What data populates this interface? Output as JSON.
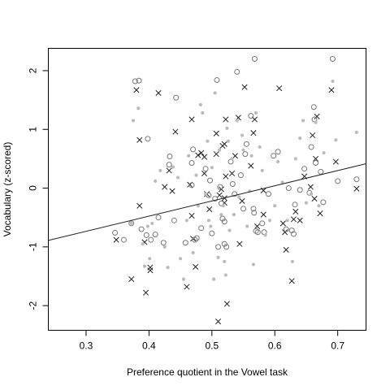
{
  "chart_data": {
    "type": "scatter",
    "xlabel": "Preference quotient in the Vowel task",
    "ylabel": "Vocabulary (z-scored)",
    "xlim": [
      0.24,
      0.745
    ],
    "ylim": [
      -2.42,
      2.38
    ],
    "x_ticks": [
      0.3,
      0.4,
      0.5,
      0.6,
      0.7
    ],
    "x_tick_labels": [
      "0.3",
      "0.4",
      "0.5",
      "0.6",
      "0.7"
    ],
    "y_ticks": [
      -2,
      -1,
      0,
      1,
      2
    ],
    "y_tick_labels": [
      "-2",
      "-1",
      "0",
      "1",
      "2"
    ],
    "grid": false,
    "legend": "none",
    "colors": {
      "cross": "#222222",
      "open_circle": "#777777",
      "filled_dot": "#bbbbbb",
      "line": "#222222"
    },
    "series": [
      {
        "marker": "cross",
        "points": [
          [
            0.38,
            1.67
          ],
          [
            0.385,
            0.82
          ],
          [
            0.385,
            -0.3
          ],
          [
            0.348,
            -0.88
          ],
          [
            0.372,
            -1.55
          ],
          [
            0.393,
            -0.92
          ],
          [
            0.395,
            -1.78
          ],
          [
            0.402,
            -1.35
          ],
          [
            0.402,
            -1.4
          ],
          [
            0.415,
            1.62
          ],
          [
            0.425,
            0.02
          ],
          [
            0.432,
            0.3
          ],
          [
            0.437,
            -0.05
          ],
          [
            0.442,
            0.96
          ],
          [
            0.46,
            -1.68
          ],
          [
            0.465,
            0.06
          ],
          [
            0.468,
            1.17
          ],
          [
            0.468,
            -0.47
          ],
          [
            0.47,
            -0.86
          ],
          [
            0.474,
            -1.34
          ],
          [
            0.478,
            0.56
          ],
          [
            0.483,
            0.6
          ],
          [
            0.488,
            0.53
          ],
          [
            0.488,
            0.25
          ],
          [
            0.492,
            -0.1
          ],
          [
            0.496,
            -0.36
          ],
          [
            0.507,
            0.93
          ],
          [
            0.507,
            0.58
          ],
          [
            0.51,
            -2.27
          ],
          [
            0.512,
            -0.12
          ],
          [
            0.515,
            -0.02
          ],
          [
            0.517,
            0.72
          ],
          [
            0.52,
            0.75
          ],
          [
            0.52,
            -0.25
          ],
          [
            0.52,
            -0.17
          ],
          [
            0.522,
            1.17
          ],
          [
            0.522,
            0.2
          ],
          [
            0.524,
            -1.97
          ],
          [
            0.532,
            0.25
          ],
          [
            0.537,
            0.55
          ],
          [
            0.542,
            1.2
          ],
          [
            0.544,
            -0.95
          ],
          [
            0.548,
            -0.22
          ],
          [
            0.552,
            1.72
          ],
          [
            0.562,
            0.38
          ],
          [
            0.566,
            0.94
          ],
          [
            0.568,
            1.17
          ],
          [
            0.572,
            -0.65
          ],
          [
            0.582,
            -0.04
          ],
          [
            0.582,
            -0.45
          ],
          [
            0.607,
            1.7
          ],
          [
            0.613,
            -0.6
          ],
          [
            0.616,
            -0.75
          ],
          [
            0.618,
            -1.05
          ],
          [
            0.627,
            -1.58
          ],
          [
            0.63,
            -0.53
          ],
          [
            0.633,
            -0.4
          ],
          [
            0.64,
            -0.55
          ],
          [
            0.647,
            0.2
          ],
          [
            0.657,
            0.02
          ],
          [
            0.66,
            0.9
          ],
          [
            0.663,
            -0.18
          ],
          [
            0.665,
            0.5
          ],
          [
            0.667,
            1.22
          ],
          [
            0.672,
            -0.43
          ],
          [
            0.69,
            1.67
          ],
          [
            0.697,
            0.45
          ],
          [
            0.73,
            -0.01
          ]
        ]
      },
      {
        "marker": "open_circle",
        "points": [
          [
            0.378,
            1.82
          ],
          [
            0.384,
            1.83
          ],
          [
            0.398,
            0.84
          ],
          [
            0.346,
            -0.76
          ],
          [
            0.36,
            -0.88
          ],
          [
            0.372,
            -0.6
          ],
          [
            0.388,
            -0.7
          ],
          [
            0.396,
            -0.8
          ],
          [
            0.403,
            -0.88
          ],
          [
            0.41,
            -0.79
          ],
          [
            0.415,
            -0.5
          ],
          [
            0.423,
            -0.93
          ],
          [
            0.432,
            0.4
          ],
          [
            0.433,
            0.54
          ],
          [
            0.44,
            -0.55
          ],
          [
            0.443,
            1.54
          ],
          [
            0.458,
            -0.93
          ],
          [
            0.468,
            0.43
          ],
          [
            0.468,
            0.05
          ],
          [
            0.47,
            0.66
          ],
          [
            0.473,
            -0.88
          ],
          [
            0.476,
            -0.85
          ],
          [
            0.483,
            -0.68
          ],
          [
            0.49,
            0.33
          ],
          [
            0.495,
            -0.12
          ],
          [
            0.497,
            0.13
          ],
          [
            0.5,
            -0.77
          ],
          [
            0.505,
            -0.18
          ],
          [
            0.508,
            1.84
          ],
          [
            0.51,
            -1.0
          ],
          [
            0.513,
            0.02
          ],
          [
            0.515,
            -0.26
          ],
          [
            0.517,
            -0.52
          ],
          [
            0.52,
            -0.57
          ],
          [
            0.52,
            -0.95
          ],
          [
            0.523,
            -1.0
          ],
          [
            0.53,
            0.45
          ],
          [
            0.533,
            0.07
          ],
          [
            0.536,
            -0.1
          ],
          [
            0.54,
            1.98
          ],
          [
            0.546,
            0.22
          ],
          [
            0.55,
            -0.35
          ],
          [
            0.553,
            0.58
          ],
          [
            0.555,
            0.75
          ],
          [
            0.562,
            1.23
          ],
          [
            0.566,
            -0.35
          ],
          [
            0.567,
            -0.42
          ],
          [
            0.568,
            2.2
          ],
          [
            0.57,
            -0.73
          ],
          [
            0.573,
            -0.75
          ],
          [
            0.58,
            -0.6
          ],
          [
            0.583,
            -0.75
          ],
          [
            0.59,
            -0.1
          ],
          [
            0.598,
            0.55
          ],
          [
            0.605,
            0.62
          ],
          [
            0.618,
            -0.7
          ],
          [
            0.622,
            0.0
          ],
          [
            0.627,
            -0.72
          ],
          [
            0.63,
            -0.78
          ],
          [
            0.632,
            -0.28
          ],
          [
            0.64,
            -0.03
          ],
          [
            0.647,
            0.33
          ],
          [
            0.655,
            -0.08
          ],
          [
            0.658,
            0.7
          ],
          [
            0.662,
            1.38
          ],
          [
            0.663,
            1.17
          ],
          [
            0.665,
            0.43
          ],
          [
            0.673,
            0.28
          ],
          [
            0.677,
            -0.24
          ],
          [
            0.692,
            2.2
          ],
          [
            0.7,
            0.12
          ],
          [
            0.73,
            0.15
          ]
        ]
      },
      {
        "marker": "filled_dot",
        "points": [
          [
            0.372,
            -0.6
          ],
          [
            0.375,
            1.15
          ],
          [
            0.383,
            1.36
          ],
          [
            0.39,
            -0.95
          ],
          [
            0.393,
            -1.33
          ],
          [
            0.398,
            -0.65
          ],
          [
            0.401,
            -1.2
          ],
          [
            0.405,
            -0.6
          ],
          [
            0.41,
            0.12
          ],
          [
            0.418,
            0.3
          ],
          [
            0.425,
            -1.0
          ],
          [
            0.43,
            -1.35
          ],
          [
            0.438,
            0.36
          ],
          [
            0.446,
            0.18
          ],
          [
            0.45,
            -1.2
          ],
          [
            0.455,
            -1.55
          ],
          [
            0.46,
            -0.55
          ],
          [
            0.463,
            0.55
          ],
          [
            0.47,
            -1.1
          ],
          [
            0.475,
            0.22
          ],
          [
            0.478,
            -0.3
          ],
          [
            0.482,
            1.42
          ],
          [
            0.485,
            1.28
          ],
          [
            0.49,
            -0.1
          ],
          [
            0.493,
            0.8
          ],
          [
            0.495,
            -0.55
          ],
          [
            0.498,
            -0.65
          ],
          [
            0.5,
            0.35
          ],
          [
            0.503,
            -1.55
          ],
          [
            0.505,
            1.62
          ],
          [
            0.51,
            -1.18
          ],
          [
            0.512,
            0.65
          ],
          [
            0.515,
            -0.45
          ],
          [
            0.518,
            -0.3
          ],
          [
            0.52,
            -1.25
          ],
          [
            0.522,
            -1.48
          ],
          [
            0.524,
            1.02
          ],
          [
            0.526,
            0.8
          ],
          [
            0.528,
            -0.72
          ],
          [
            0.532,
            0.5
          ],
          [
            0.535,
            -0.45
          ],
          [
            0.54,
            1.15
          ],
          [
            0.543,
            -0.15
          ],
          [
            0.548,
            0.9
          ],
          [
            0.55,
            0.65
          ],
          [
            0.556,
            -0.65
          ],
          [
            0.56,
            -0.05
          ],
          [
            0.563,
            0.55
          ],
          [
            0.566,
            -1.3
          ],
          [
            0.57,
            1.28
          ],
          [
            0.576,
            0.7
          ],
          [
            0.58,
            0.3
          ],
          [
            0.585,
            -0.8
          ],
          [
            0.592,
            -0.55
          ],
          [
            0.6,
            -0.3
          ],
          [
            0.605,
            0.45
          ],
          [
            0.612,
            0.1
          ],
          [
            0.62,
            -0.55
          ],
          [
            0.628,
            -1.25
          ],
          [
            0.633,
            0.5
          ],
          [
            0.64,
            0.85
          ],
          [
            0.645,
            1.15
          ],
          [
            0.65,
            -0.25
          ],
          [
            0.658,
            -0.1
          ],
          [
            0.665,
            1.12
          ],
          [
            0.67,
            -0.3
          ],
          [
            0.678,
            0.6
          ],
          [
            0.692,
            1.82
          ],
          [
            0.697,
            0.82
          ],
          [
            0.73,
            0.95
          ]
        ]
      }
    ],
    "regression_line": {
      "intercept": -1.51,
      "slope": 2.584
    }
  }
}
